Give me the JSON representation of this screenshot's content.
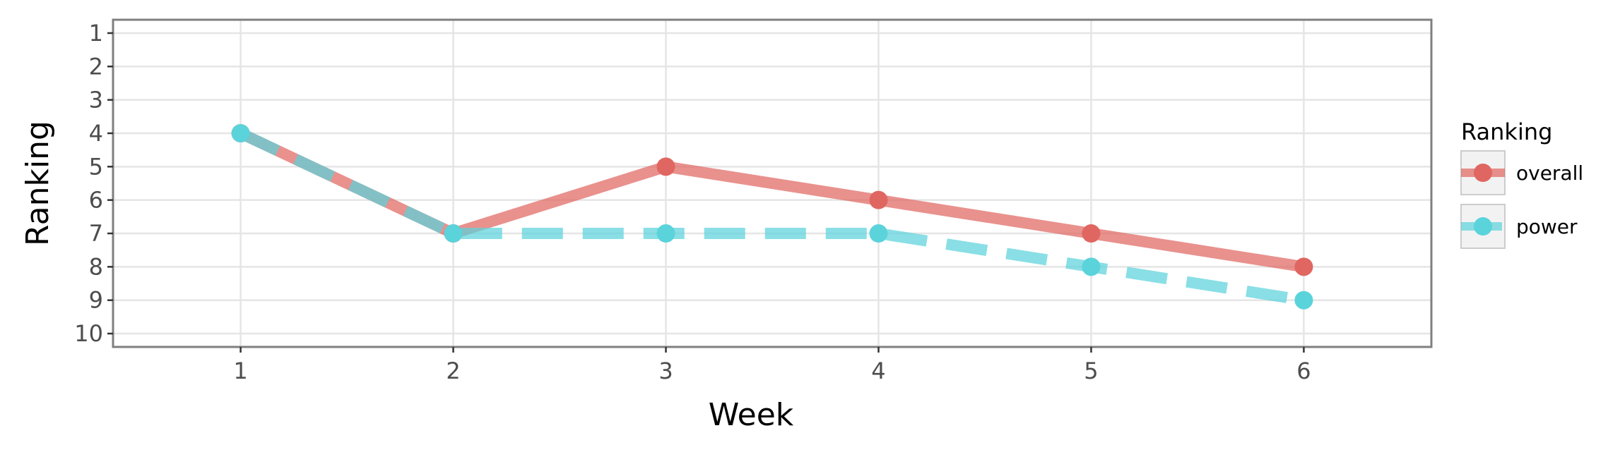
{
  "chart_data": {
    "type": "line",
    "xlabel": "Week",
    "ylabel": "Ranking",
    "x": [
      1,
      2,
      3,
      4,
      5,
      6
    ],
    "x_ticks": [
      "1",
      "2",
      "3",
      "4",
      "5",
      "6"
    ],
    "y_ticks": [
      "1",
      "2",
      "3",
      "4",
      "5",
      "6",
      "7",
      "8",
      "9",
      "10"
    ],
    "xlim": [
      0.4,
      6.6
    ],
    "ylim": [
      10.4,
      0.6
    ],
    "y_reversed": true,
    "grid": true,
    "legend": {
      "title": "Ranking",
      "position": "right"
    },
    "series": [
      {
        "name": "overall",
        "values": [
          4,
          7,
          5,
          6,
          7,
          8
        ],
        "color": "#e06661",
        "line_style": "solid"
      },
      {
        "name": "power",
        "values": [
          4,
          7,
          7,
          7,
          8,
          9
        ],
        "color": "#5bd3db",
        "line_style": "dashed"
      }
    ]
  }
}
